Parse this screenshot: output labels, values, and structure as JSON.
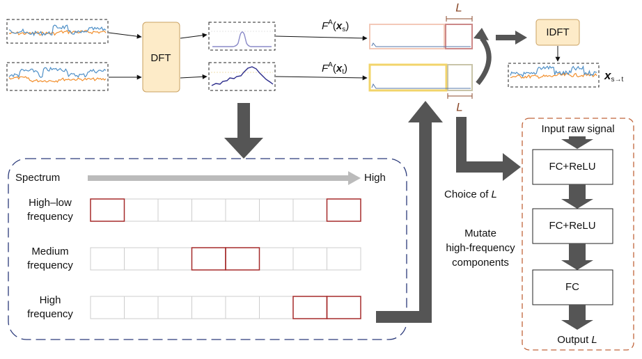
{
  "top": {
    "dft": "DFT",
    "fa_s": {
      "base": "F",
      "sup": "A",
      "open": "(",
      "var": "x",
      "sub": "s",
      "close": ")"
    },
    "fa_t": {
      "base": "F",
      "sup": "A",
      "open": "(",
      "var": "x",
      "sub": "t",
      "close": ")"
    },
    "l_top": "L",
    "l_bottom": "L",
    "idft": "IDFT",
    "x_st": {
      "var": "x",
      "sub": "s→t"
    }
  },
  "spectrum_panel": {
    "axis_label": "Spectrum",
    "axis_end": "High",
    "rows": [
      {
        "lines": [
          "High–low",
          "frequency"
        ]
      },
      {
        "lines": [
          "Medium",
          "frequency"
        ]
      },
      {
        "lines": [
          "High",
          "frequency"
        ]
      }
    ]
  },
  "middle": {
    "choice": {
      "text": "Choice of ",
      "var": "L"
    },
    "mutate": [
      "Mutate",
      "high-frequency",
      "components"
    ]
  },
  "network": {
    "input": "Input raw signal",
    "layers": [
      "FC+ReLU",
      "FC+ReLU",
      "FC"
    ],
    "output": {
      "text": "Output ",
      "var": "L"
    }
  }
}
